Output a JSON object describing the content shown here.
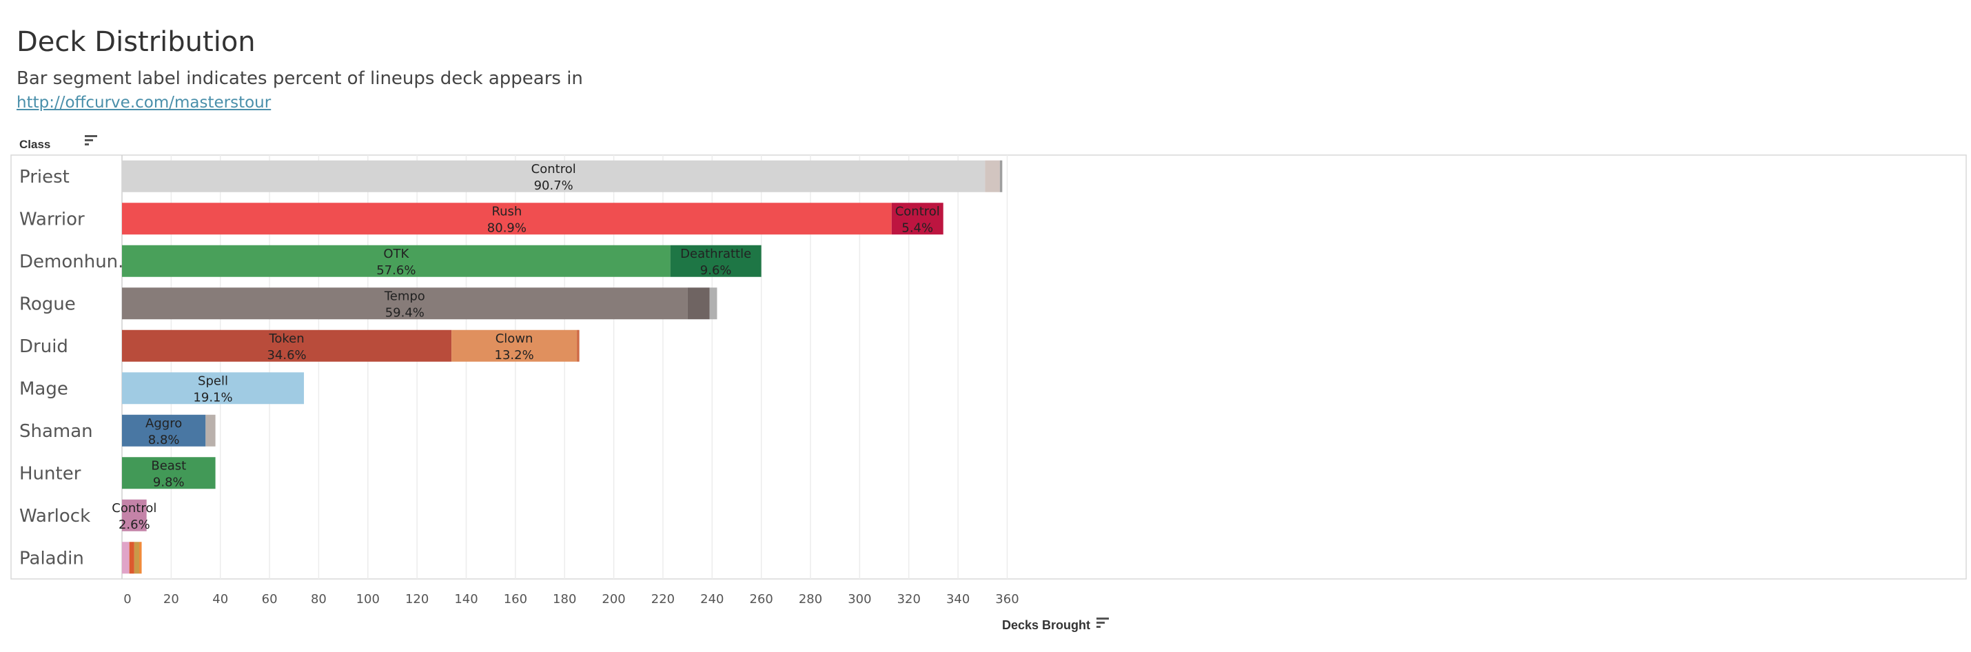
{
  "header": {
    "title": "Deck Distribution",
    "subtitle": "Bar segment label indicates percent of lineups deck appears in",
    "link": "http://offcurve.com/masterstour",
    "row_header": "Class"
  },
  "icons": {
    "row_sort": "sort-descending-icon",
    "col_sort": "sort-descending-icon"
  },
  "chart_data": {
    "type": "bar",
    "orientation": "horizontal",
    "stacked": true,
    "xlabel": "Decks Brought",
    "ylabel": "Class",
    "xlim": [
      0,
      360
    ],
    "xticks": [
      0,
      20,
      40,
      60,
      80,
      100,
      120,
      140,
      160,
      180,
      200,
      220,
      240,
      260,
      280,
      300,
      320,
      340,
      360
    ],
    "grid": true,
    "categories": [
      "Priest",
      "Warrior",
      "Demonhun..",
      "Rogue",
      "Druid",
      "Mage",
      "Shaman",
      "Hunter",
      "Warlock",
      "Paladin"
    ],
    "rows": [
      {
        "class": "Priest",
        "segments": [
          {
            "value": 351,
            "color": "#d4d4d4",
            "label": "Control",
            "pct": "90.7%"
          },
          {
            "value": 6,
            "color": "#d2c5c0"
          },
          {
            "value": 1,
            "color": "#9e9e9e"
          }
        ]
      },
      {
        "class": "Warrior",
        "segments": [
          {
            "value": 313,
            "color": "#f04e50",
            "label": "Rush",
            "pct": "80.9%"
          },
          {
            "value": 21,
            "color": "#bd1540",
            "label": "Control",
            "pct": "5.4%"
          }
        ]
      },
      {
        "class": "Demonhun..",
        "segments": [
          {
            "value": 223,
            "color": "#49a05a",
            "label": "OTK",
            "pct": "57.6%"
          },
          {
            "value": 37,
            "color": "#1e7645",
            "label": "Deathrattle",
            "pct": "9.6%"
          }
        ]
      },
      {
        "class": "Rogue",
        "segments": [
          {
            "value": 230,
            "color": "#877c79",
            "label": "Tempo",
            "pct": "59.4%"
          },
          {
            "value": 9,
            "color": "#6f6462"
          },
          {
            "value": 3,
            "color": "#b0b0b0"
          }
        ]
      },
      {
        "class": "Druid",
        "segments": [
          {
            "value": 134,
            "color": "#b94c3b",
            "label": "Token",
            "pct": "34.6%"
          },
          {
            "value": 51,
            "color": "#e0905e",
            "label": "Clown",
            "pct": "13.2%"
          },
          {
            "value": 1,
            "color": "#cf6a45"
          }
        ]
      },
      {
        "class": "Mage",
        "segments": [
          {
            "value": 74,
            "color": "#a0cbe3",
            "label": "Spell",
            "pct": "19.1%"
          }
        ]
      },
      {
        "class": "Shaman",
        "segments": [
          {
            "value": 34,
            "color": "#4977a3",
            "label": "Aggro",
            "pct": "8.8%"
          },
          {
            "value": 4,
            "color": "#b9b0ab"
          }
        ]
      },
      {
        "class": "Hunter",
        "segments": [
          {
            "value": 38,
            "color": "#429957",
            "label": "Beast",
            "pct": "9.8%"
          }
        ]
      },
      {
        "class": "Warlock",
        "segments": [
          {
            "value": 10,
            "color": "#c483a8",
            "label": "Control",
            "pct": "2.6%"
          }
        ]
      },
      {
        "class": "Paladin",
        "segments": [
          {
            "value": 3,
            "color": "#e0a4c8"
          },
          {
            "value": 2,
            "color": "#dc5a2e"
          },
          {
            "value": 2,
            "color": "#c99948"
          },
          {
            "value": 1,
            "color": "#f08a3a"
          }
        ]
      }
    ]
  }
}
